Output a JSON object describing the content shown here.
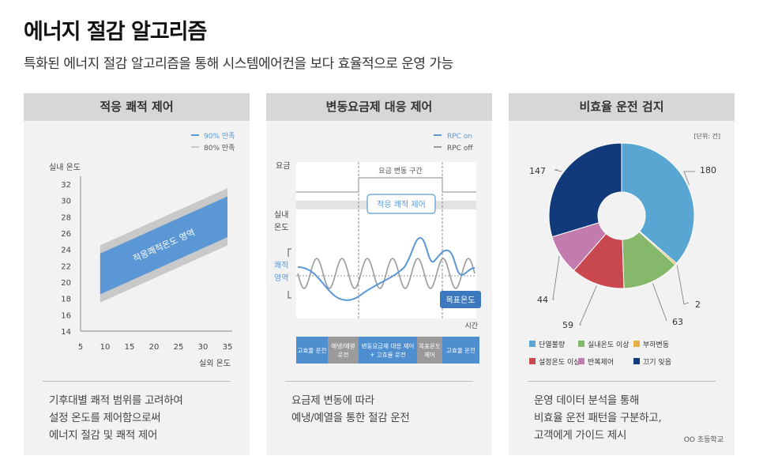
{
  "page": {
    "title": "에너지 절감 알고리즘",
    "subtitle": "특화된 에너지 절감 알고리즘을 통해 시스템에어컨을 보다 효율적으로 운영 가능"
  },
  "panels": [
    {
      "heading": "적응 쾌적 제어",
      "desc": [
        "기후대별 쾌적 범위를 고려하여",
        "설정 온도를 제어함으로써",
        "에너지 절감 및 쾌적 제어"
      ]
    },
    {
      "heading": "변동요금제 대응 제어",
      "desc": [
        "요금제 변동에 따라",
        "예냉/예열을 통한 절감 운전"
      ]
    },
    {
      "heading": "비효율 운전 검지",
      "desc": [
        "운영 데이터 분석을 통해",
        "비효율 운전 패턴을 구분하고,",
        "고객에게 가이드 제시"
      ],
      "footnote": "OO 초등학교"
    }
  ],
  "chart_data": [
    {
      "type": "area",
      "title": "적응 쾌적 제어",
      "xlabel": "실외 온도",
      "ylabel": "실내 온도",
      "xticks": [
        5,
        10,
        15,
        20,
        25,
        30,
        35
      ],
      "yticks": [
        14,
        16,
        18,
        20,
        22,
        24,
        26,
        28,
        30,
        32
      ],
      "xlim": [
        5,
        35
      ],
      "ylim": [
        14,
        32
      ],
      "band_label": "적응쾌적온도 영역",
      "series": [
        {
          "name": "90% 만족",
          "color": "#5b97d4",
          "x": [
            9,
            35
          ],
          "lower": [
            18.5,
            25.5
          ],
          "upper": [
            23.5,
            30.5
          ]
        },
        {
          "name": "80% 만족",
          "color": "#c9c9c9",
          "x": [
            9,
            35
          ],
          "lower": [
            17.5,
            24.5
          ],
          "upper": [
            24.5,
            31.5
          ]
        }
      ]
    },
    {
      "type": "line",
      "title": "변동요금제 대응 제어",
      "legend": [
        "RPC on",
        "RPC off"
      ],
      "colors": {
        "rpc_on": "#5b97d4",
        "rpc_off": "#9a9a9a"
      },
      "ylabels": {
        "price": "요금",
        "indoor": [
          "실내",
          "온도"
        ],
        "comfort": [
          "쾌적",
          "영역"
        ]
      },
      "xlabel": "시간",
      "price_period_label": "요금 변동 구간",
      "comfort_label": "적응 쾌적 제어",
      "target_label": "목표온도",
      "stages": [
        "고효율 운전",
        "예냉/예열\n운전",
        "변동요금제 대응 제어\n+ 고효율 운전",
        "목표온도\n제어",
        "고효율 운전"
      ]
    },
    {
      "type": "pie",
      "title": "비효율 운전 검지",
      "unit": "[단위: 건]",
      "slices": [
        {
          "label": "단열불량",
          "value": 180,
          "color": "#5aa6d2"
        },
        {
          "label": "부하변동",
          "value": 2,
          "color": "#e7ae44"
        },
        {
          "label": "실내온도 이상",
          "value": 63,
          "color": "#86b86b"
        },
        {
          "label": "설정온도 이상",
          "value": 59,
          "color": "#c9484f"
        },
        {
          "label": "반복제어",
          "value": 44,
          "color": "#c27bad"
        },
        {
          "label": "끄기 잊음",
          "value": 147,
          "color": "#123a7a"
        }
      ],
      "legend_order": [
        "단열불량",
        "실내온도 이상",
        "부하변동",
        "설정온도 이상",
        "반복제어",
        "끄기 잊음"
      ]
    }
  ]
}
